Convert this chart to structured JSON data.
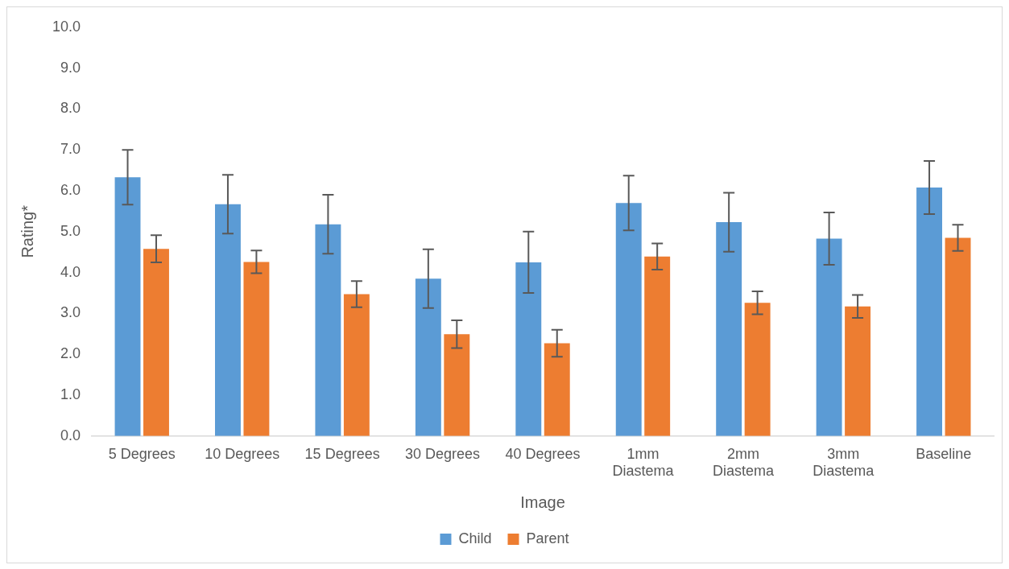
{
  "chart_data": {
    "type": "bar",
    "xlabel": "Image",
    "ylabel": "Rating*",
    "categories": [
      "5 Degrees",
      "10 Degrees",
      "15 Degrees",
      "30 Degrees",
      "40 Degrees",
      "1mm Diastema",
      "2mm Diastema",
      "3mm Diastema",
      "Baseline"
    ],
    "series": [
      {
        "name": "Child",
        "color": "#5b9bd5",
        "values": [
          6.33,
          5.67,
          5.18,
          3.85,
          4.25,
          5.7,
          5.23,
          4.83,
          6.08
        ],
        "errors": [
          0.67,
          0.72,
          0.72,
          0.72,
          0.75,
          0.67,
          0.72,
          0.64,
          0.65
        ]
      },
      {
        "name": "Parent",
        "color": "#ed7d31",
        "values": [
          4.58,
          4.26,
          3.47,
          2.49,
          2.27,
          4.39,
          3.26,
          3.17,
          4.85
        ],
        "errors": [
          0.33,
          0.28,
          0.32,
          0.34,
          0.33,
          0.32,
          0.28,
          0.28,
          0.32
        ]
      }
    ],
    "ylim": [
      0,
      10
    ],
    "yticks": [
      {
        "value": 0,
        "label": "0.0"
      },
      {
        "value": 1,
        "label": "1.0"
      },
      {
        "value": 2,
        "label": "2.0"
      },
      {
        "value": 3,
        "label": "3.0"
      },
      {
        "value": 4,
        "label": "4.0"
      },
      {
        "value": 5,
        "label": "5.0"
      },
      {
        "value": 6,
        "label": "6.0"
      },
      {
        "value": 7,
        "label": "7.0"
      },
      {
        "value": 8,
        "label": "8.0"
      },
      {
        "value": 9,
        "label": "9.0"
      },
      {
        "value": 10,
        "label": "10.0"
      }
    ],
    "grid": false,
    "legend": "bottom"
  }
}
